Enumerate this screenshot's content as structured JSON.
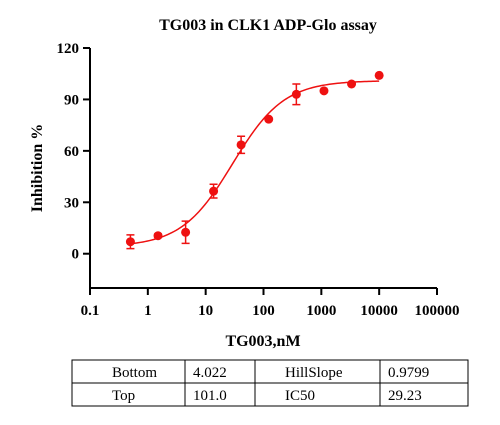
{
  "chart_data": {
    "type": "scatter",
    "title": "TG003 in CLK1 ADP-Glo assay",
    "x_label": "TG003,nM",
    "y_label": "Inhibition %",
    "x_scale": "log",
    "xlim": [
      0.1,
      100000
    ],
    "xticks": [
      0.1,
      1,
      10,
      100,
      1000,
      10000,
      100000
    ],
    "ylim": [
      -20,
      120
    ],
    "yticks": [
      0,
      30,
      60,
      90,
      120
    ],
    "series": [
      {
        "color": "#ee1111",
        "x": [
          0.5,
          1.5,
          4.5,
          13.7,
          41,
          123,
          370,
          1111,
          3333,
          10000
        ],
        "values": [
          7,
          10.5,
          12.5,
          36.5,
          63.5,
          78.5,
          93,
          95,
          99,
          104
        ],
        "errors": [
          4,
          1,
          6.5,
          4,
          5,
          0,
          6,
          0,
          0,
          0
        ]
      }
    ],
    "fit_table": {
      "rows": [
        [
          "Bottom",
          "4.022",
          "HillSlope",
          "0.9799"
        ],
        [
          "Top",
          "101.0",
          "IC50",
          "29.23"
        ]
      ]
    }
  }
}
